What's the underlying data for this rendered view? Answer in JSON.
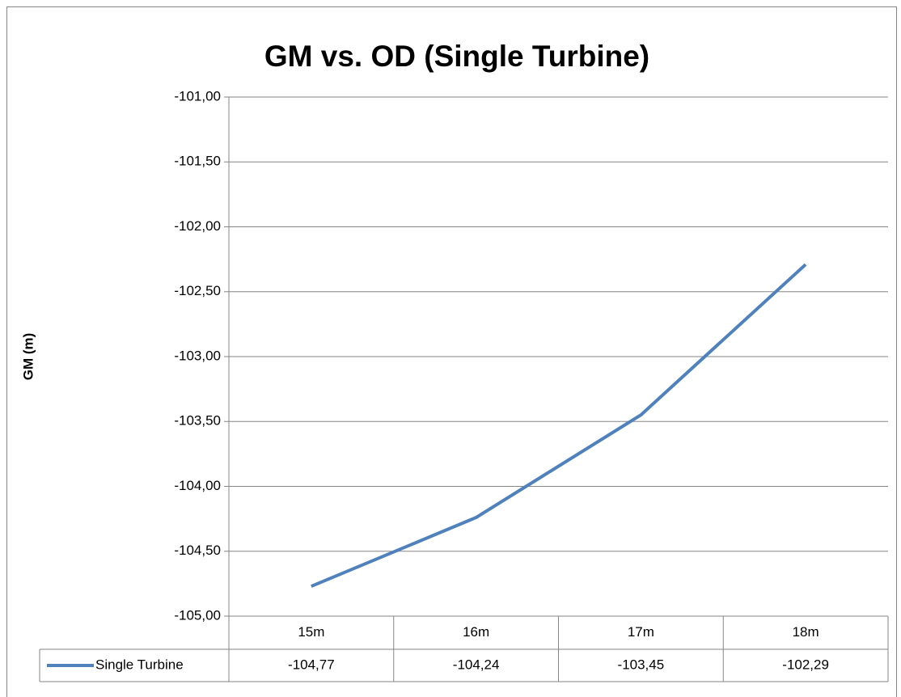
{
  "chart_data": {
    "type": "line",
    "title": "GM vs. OD (Single Turbine)",
    "y_label": "GM (m)",
    "categories": [
      "15m",
      "16m",
      "17m",
      "18m"
    ],
    "series": [
      {
        "name": "Single Turbine",
        "color": "#4f81bd",
        "values": [
          -104.77,
          -104.24,
          -103.45,
          -102.29
        ],
        "value_labels": [
          "-104,77",
          "-104,24",
          "-103,45",
          "-102,29"
        ]
      }
    ],
    "ylim": [
      -105,
      -101
    ],
    "yticks": [
      {
        "value": -105,
        "label": "-105,00"
      },
      {
        "value": -104.5,
        "label": "-104,50"
      },
      {
        "value": -104,
        "label": "-104,00"
      },
      {
        "value": -103.5,
        "label": "-103,50"
      },
      {
        "value": -103,
        "label": "-103,00"
      },
      {
        "value": -102.5,
        "label": "-102,50"
      },
      {
        "value": -102,
        "label": "-102,00"
      },
      {
        "value": -101.5,
        "label": "-101,50"
      },
      {
        "value": -101,
        "label": "-101,00"
      }
    ],
    "grid": true,
    "data_table": true
  }
}
